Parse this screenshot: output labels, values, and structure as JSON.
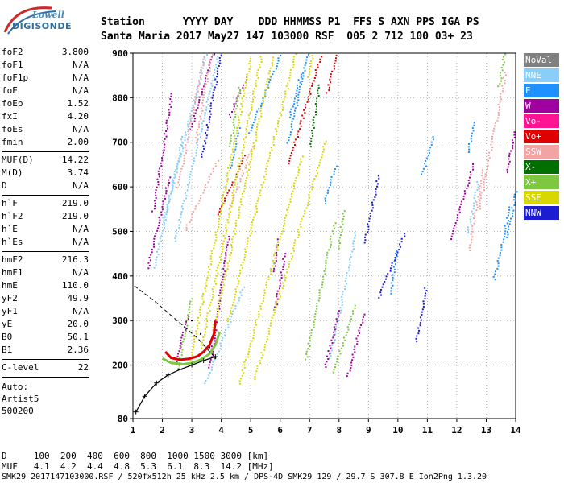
{
  "logo": {
    "line1": "Lowell",
    "line2": "DIGISONDE"
  },
  "header": {
    "labels": "Station      YYYY DAY    DDD HHMMSS P1  FFS S AXN PPS IGA PS",
    "values": "Santa Maria 2017 May27 147 103000 RSF  005 2 712 100 03+ 23"
  },
  "params": [
    {
      "name": "foF2",
      "value": "3.800"
    },
    {
      "name": "foF1",
      "value": "N/A"
    },
    {
      "name": "foF1p",
      "value": "N/A"
    },
    {
      "name": "foE",
      "value": "N/A"
    },
    {
      "name": "foEp",
      "value": "1.52"
    },
    {
      "name": "fxI",
      "value": "4.20"
    },
    {
      "name": "foEs",
      "value": "N/A"
    },
    {
      "name": "fmin",
      "value": "2.00"
    },
    {
      "name": "MUF(D)",
      "value": "14.22"
    },
    {
      "name": "M(D)",
      "value": "3.74"
    },
    {
      "name": "D",
      "value": "N/A"
    },
    {
      "name": "h`F",
      "value": "219.0"
    },
    {
      "name": "h`F2",
      "value": "219.0"
    },
    {
      "name": "h`E",
      "value": "N/A"
    },
    {
      "name": "h`Es",
      "value": "N/A"
    },
    {
      "name": "hmF2",
      "value": "216.3"
    },
    {
      "name": "hmF1",
      "value": "N/A"
    },
    {
      "name": "hmE",
      "value": "110.0"
    },
    {
      "name": "yF2",
      "value": "49.9"
    },
    {
      "name": "yF1",
      "value": "N/A"
    },
    {
      "name": "yE",
      "value": "20.0"
    },
    {
      "name": "B0",
      "value": "50.1"
    },
    {
      "name": "B1",
      "value": "2.36"
    },
    {
      "name": "C-level",
      "value": "22"
    }
  ],
  "auto": {
    "label": "Auto:",
    "software": "Artist5",
    "version": "500200"
  },
  "legend": [
    {
      "label": "NoVal",
      "color": "#808080"
    },
    {
      "label": "NNE",
      "color": "#87cefa"
    },
    {
      "label": "E",
      "color": "#1e90ff"
    },
    {
      "label": "W",
      "color": "#a0009f"
    },
    {
      "label": "Vo-",
      "color": "#ff1493"
    },
    {
      "label": "Vo+",
      "color": "#e00000"
    },
    {
      "label": "SSW",
      "color": "#f4a3a3"
    },
    {
      "label": "X-",
      "color": "#007000"
    },
    {
      "label": "X+",
      "color": "#7dc840"
    },
    {
      "label": "SSE",
      "color": "#d8d800"
    },
    {
      "label": "NNW",
      "color": "#1c1cd0"
    }
  ],
  "bottom": {
    "d_row": "D     100  200  400  600  800  1000 1500 3000 [km]",
    "muf_row": "MUF   4.1  4.2  4.4  4.8  5.3  6.1  8.3  14.2 [MHz]",
    "footer": "SMK29_2017147103000.RSF / 520fx512h 25 kHz 2.5 km / DPS-4D SMK29 129 / 29.7 S 307.8 E Ion2Png 1.3.20"
  },
  "chart_data": {
    "type": "scatter",
    "title": "",
    "xlabel": "",
    "ylabel": "",
    "xlim": [
      1,
      14
    ],
    "ylim": [
      80,
      900
    ],
    "x_ticks": [
      1,
      2,
      3,
      4,
      5,
      6,
      7,
      8,
      9,
      10,
      11,
      12,
      13,
      14
    ],
    "y_ticks": [
      80,
      200,
      300,
      400,
      500,
      600,
      700,
      800,
      900
    ],
    "grid": true,
    "legend_placement": "right",
    "series": [
      {
        "name": "Vo+",
        "points": [
          [
            2.1,
            230
          ],
          [
            2.3,
            216
          ],
          [
            2.6,
            212
          ],
          [
            2.9,
            214
          ],
          [
            3.2,
            220
          ],
          [
            3.4,
            230
          ],
          [
            3.6,
            245
          ],
          [
            3.75,
            270
          ],
          [
            3.8,
            300
          ]
        ]
      },
      {
        "name": "X+",
        "points": [
          [
            2.0,
            215
          ],
          [
            2.3,
            205
          ],
          [
            2.7,
            202
          ],
          [
            3.0,
            205
          ],
          [
            3.3,
            212
          ],
          [
            3.6,
            225
          ],
          [
            3.8,
            245
          ],
          [
            3.95,
            275
          ]
        ]
      }
    ],
    "ntn_profile": [
      [
        3.0,
        300
      ],
      [
        3.3,
        270
      ],
      [
        3.6,
        240
      ],
      [
        3.8,
        216
      ]
    ],
    "trace_fit": [
      [
        1.1,
        95
      ],
      [
        1.4,
        130
      ],
      [
        1.8,
        160
      ],
      [
        2.2,
        178
      ],
      [
        2.6,
        190
      ],
      [
        3.0,
        200
      ],
      [
        3.4,
        210
      ],
      [
        3.8,
        219
      ]
    ]
  }
}
